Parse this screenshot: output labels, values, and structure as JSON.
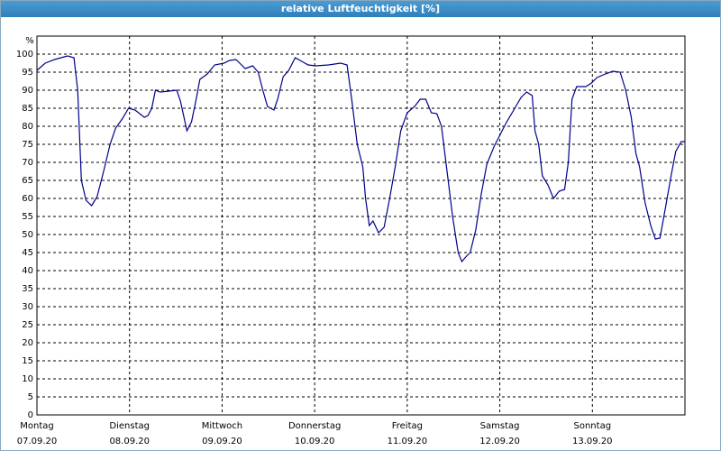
{
  "chart_data": {
    "type": "line",
    "title": "relative Luftfeuchtigkeit [%]",
    "y_label": "%",
    "xlim": [
      0,
      7
    ],
    "xticks": [
      {
        "value": 0,
        "label": "Montag",
        "date": "07.09.20"
      },
      {
        "value": 1,
        "label": "Dienstag",
        "date": "08.09.20"
      },
      {
        "value": 2,
        "label": "Mittwoch",
        "date": "09.09.20"
      },
      {
        "value": 3,
        "label": "Donnerstag",
        "date": "10.09.20"
      },
      {
        "value": 4,
        "label": "Freitag",
        "date": "11.09.20"
      },
      {
        "value": 5,
        "label": "Samstag",
        "date": "12.09.20"
      },
      {
        "value": 6,
        "label": "Sonntag",
        "date": "13.09.20"
      }
    ],
    "ylim": [
      0,
      105
    ],
    "yticks": [
      0,
      5,
      10,
      15,
      20,
      25,
      30,
      35,
      40,
      45,
      50,
      55,
      60,
      65,
      70,
      75,
      80,
      85,
      90,
      95,
      100
    ],
    "grid": true,
    "series": [
      {
        "name": "relative Luftfeuchtigkeit",
        "color": "#00008b",
        "x": [
          0,
          0.09,
          0.19,
          0.33,
          0.4,
          0.44,
          0.48,
          0.53,
          0.59,
          0.65,
          0.72,
          0.79,
          0.85,
          0.92,
          0.99,
          1.06,
          1.11,
          1.16,
          1.2,
          1.24,
          1.28,
          1.33,
          1.43,
          1.51,
          1.55,
          1.62,
          1.67,
          1.72,
          1.76,
          1.84,
          1.92,
          2.02,
          2.08,
          2.15,
          2.21,
          2.25,
          2.33,
          2.39,
          2.44,
          2.49,
          2.56,
          2.6,
          2.66,
          2.72,
          2.79,
          2.86,
          2.93,
          3.01,
          3.15,
          3.28,
          3.35,
          3.4,
          3.46,
          3.52,
          3.55,
          3.59,
          3.63,
          3.69,
          3.75,
          3.81,
          3.87,
          3.93,
          4.0,
          4.08,
          4.14,
          4.2,
          4.26,
          4.32,
          4.37,
          4.43,
          4.49,
          4.55,
          4.59,
          4.64,
          4.68,
          4.74,
          4.8,
          4.86,
          4.94,
          5.01,
          5.07,
          5.15,
          5.23,
          5.29,
          5.35,
          5.38,
          5.42,
          5.46,
          5.52,
          5.58,
          5.64,
          5.7,
          5.74,
          5.78,
          5.83,
          5.93,
          5.99,
          6.05,
          6.14,
          6.22,
          6.3,
          6.36,
          6.42,
          6.47,
          6.51,
          6.57,
          6.63,
          6.68,
          6.73,
          6.79,
          6.85,
          6.9,
          6.96,
          7.0
        ],
        "values": [
          95.5,
          97.5,
          98.5,
          99.5,
          99,
          90,
          65,
          59.5,
          58,
          60.5,
          67.5,
          75,
          79.5,
          82,
          85,
          84.5,
          83.5,
          82.5,
          83,
          85,
          90,
          89.5,
          89.75,
          90,
          87,
          78.75,
          81.25,
          87.5,
          93,
          94.5,
          97,
          97.5,
          98.25,
          98.5,
          97,
          96,
          96.75,
          95,
          90,
          85.5,
          84.5,
          87.5,
          93.75,
          95.5,
          99,
          98,
          97,
          96.75,
          97,
          97.5,
          97,
          87.5,
          75,
          68.75,
          60,
          52.5,
          53.75,
          50.5,
          52,
          60,
          68.75,
          78.75,
          83.75,
          85.5,
          87.5,
          87.5,
          83.75,
          83.5,
          80,
          67.5,
          55,
          45,
          42.5,
          44,
          45,
          51.25,
          61.25,
          69.5,
          74.5,
          78,
          81,
          84.5,
          88,
          89.5,
          88.5,
          78.75,
          75,
          66.25,
          63.75,
          60,
          62,
          62.5,
          70,
          87.5,
          91,
          91,
          92,
          93.5,
          94.5,
          95.25,
          95,
          90,
          82.5,
          72.5,
          68.75,
          58.75,
          52.5,
          48.75,
          49,
          57.5,
          66.25,
          73,
          75.75,
          75.75
        ]
      }
    ]
  }
}
